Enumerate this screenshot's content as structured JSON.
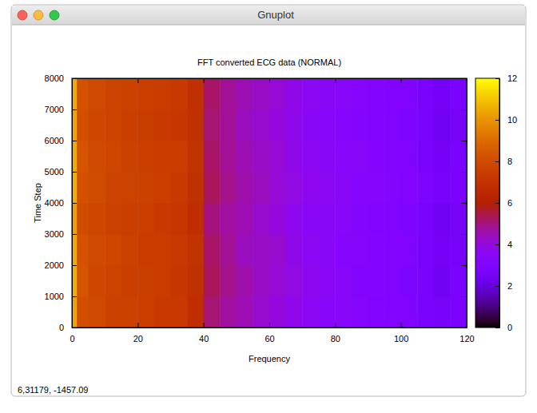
{
  "chart_data": {
    "type": "heatmap",
    "title": "FFT converted ECG data (NORMAL)",
    "x_label": "Frequency",
    "y_label": "Time Step",
    "xlim": [
      0,
      120
    ],
    "xticks": [
      0,
      20,
      40,
      60,
      80,
      100,
      120
    ],
    "ylim": [
      0,
      8000
    ],
    "yticks": [
      0,
      1000,
      2000,
      3000,
      4000,
      5000,
      6000,
      7000,
      8000
    ],
    "x_bins": [
      0,
      1.5,
      5,
      10,
      15,
      20,
      25,
      30,
      35,
      40,
      45,
      50,
      55,
      60,
      65,
      70,
      75,
      80,
      85,
      90,
      95,
      100,
      105,
      110,
      115,
      120
    ],
    "y_bins": [
      0,
      1000,
      2000,
      3000,
      4000,
      5000,
      6000,
      7000,
      8000
    ],
    "cells": [
      [
        10.4,
        8.1,
        7.9,
        7.6,
        7.6,
        7.5,
        7.3,
        7.3,
        6.8,
        5.1,
        4.7,
        4.5,
        4.2,
        4.0,
        3.8,
        3.6,
        3.4,
        3.4,
        3.3,
        3.1,
        3.1,
        3.0,
        2.7,
        2.6,
        2.8
      ],
      [
        10.6,
        8.3,
        7.8,
        7.7,
        7.5,
        7.5,
        7.4,
        7.2,
        6.9,
        5.3,
        4.9,
        4.6,
        4.3,
        4.1,
        3.9,
        3.7,
        3.5,
        3.4,
        3.2,
        3.2,
        3.0,
        2.9,
        2.8,
        2.4,
        2.7
      ],
      [
        10.5,
        8.2,
        7.9,
        7.8,
        7.6,
        7.4,
        7.4,
        7.3,
        7.0,
        5.2,
        4.8,
        4.4,
        4.3,
        4.2,
        3.8,
        3.6,
        3.5,
        3.3,
        3.3,
        3.2,
        3.1,
        3.0,
        2.8,
        2.5,
        2.6
      ],
      [
        10.3,
        8.0,
        7.8,
        7.6,
        7.5,
        7.5,
        7.3,
        7.2,
        6.8,
        5.0,
        4.7,
        4.5,
        4.2,
        4.0,
        3.7,
        3.5,
        3.5,
        3.4,
        3.2,
        3.1,
        3.0,
        2.9,
        2.7,
        2.4,
        2.6
      ],
      [
        10.6,
        8.2,
        8.0,
        7.7,
        7.7,
        7.6,
        7.5,
        7.3,
        6.9,
        5.3,
        4.9,
        4.6,
        4.4,
        4.1,
        3.9,
        3.7,
        3.6,
        3.5,
        3.3,
        3.3,
        3.2,
        3.1,
        2.9,
        2.6,
        2.8
      ],
      [
        10.5,
        8.3,
        7.9,
        7.8,
        7.6,
        7.5,
        7.4,
        7.4,
        7.0,
        5.2,
        4.8,
        4.5,
        4.3,
        4.1,
        3.8,
        3.6,
        3.5,
        3.4,
        3.4,
        3.2,
        3.1,
        3.0,
        2.8,
        2.5,
        2.7
      ],
      [
        10.4,
        8.1,
        7.8,
        7.7,
        7.5,
        7.4,
        7.3,
        7.2,
        6.9,
        5.1,
        4.8,
        4.4,
        4.2,
        4.0,
        3.8,
        3.5,
        3.4,
        3.3,
        3.2,
        3.1,
        3.0,
        2.9,
        2.7,
        2.4,
        2.6
      ],
      [
        10.5,
        8.2,
        7.9,
        7.7,
        7.6,
        7.5,
        7.4,
        7.3,
        6.9,
        5.2,
        4.8,
        4.5,
        4.3,
        4.1,
        3.8,
        3.6,
        3.5,
        3.4,
        3.3,
        3.2,
        3.1,
        3.0,
        2.8,
        2.5,
        2.7
      ]
    ],
    "colorbar_range": [
      0,
      12
    ],
    "colorbar_ticks": [
      0,
      2,
      4,
      6,
      8,
      10,
      12
    ],
    "grid": false,
    "annotations": [
      "6,31179, -1457.09"
    ]
  },
  "window_title": "Gnuplot"
}
